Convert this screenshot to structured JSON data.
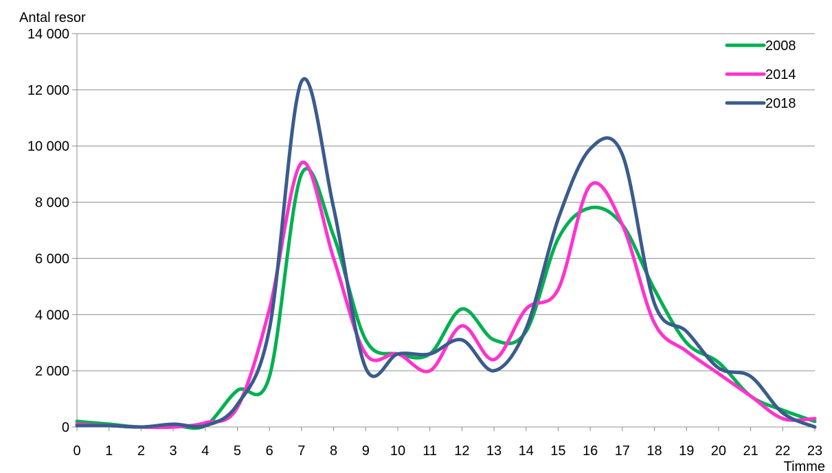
{
  "chart_data": {
    "type": "line",
    "title": "",
    "xlabel": "Timme",
    "ylabel": "Antal resor",
    "x": [
      0,
      1,
      2,
      3,
      4,
      5,
      6,
      7,
      8,
      9,
      10,
      11,
      12,
      13,
      14,
      15,
      16,
      17,
      18,
      19,
      20,
      21,
      22,
      23
    ],
    "xlim": [
      0,
      23
    ],
    "ylim": [
      0,
      14000
    ],
    "yticks": [
      0,
      2000,
      4000,
      6000,
      8000,
      10000,
      12000,
      14000
    ],
    "ytick_labels": [
      "0",
      "2 000",
      "4 000",
      "6 000",
      "8 000",
      "10 000",
      "12 000",
      "14 000"
    ],
    "grid": true,
    "legend_position": "top-right",
    "series": [
      {
        "name": "2008",
        "color": "#00b050",
        "values": [
          200,
          100,
          0,
          50,
          50,
          1300,
          1800,
          9000,
          6800,
          3100,
          2600,
          2600,
          4200,
          3100,
          3400,
          6700,
          7800,
          7200,
          4900,
          3000,
          2300,
          1100,
          600,
          200
        ]
      },
      {
        "name": "2014",
        "color": "#ff33cc",
        "values": [
          100,
          50,
          0,
          0,
          150,
          700,
          4200,
          9400,
          6000,
          2600,
          2600,
          2000,
          3600,
          2400,
          4200,
          4900,
          8600,
          7200,
          3700,
          2700,
          1900,
          1100,
          300,
          300
        ]
      },
      {
        "name": "2018",
        "color": "#3a5b8c",
        "values": [
          50,
          50,
          0,
          100,
          50,
          800,
          3500,
          12300,
          7800,
          2100,
          2600,
          2600,
          3100,
          2000,
          3500,
          7400,
          9900,
          9700,
          4400,
          3400,
          2100,
          1800,
          500,
          0
        ]
      }
    ]
  }
}
